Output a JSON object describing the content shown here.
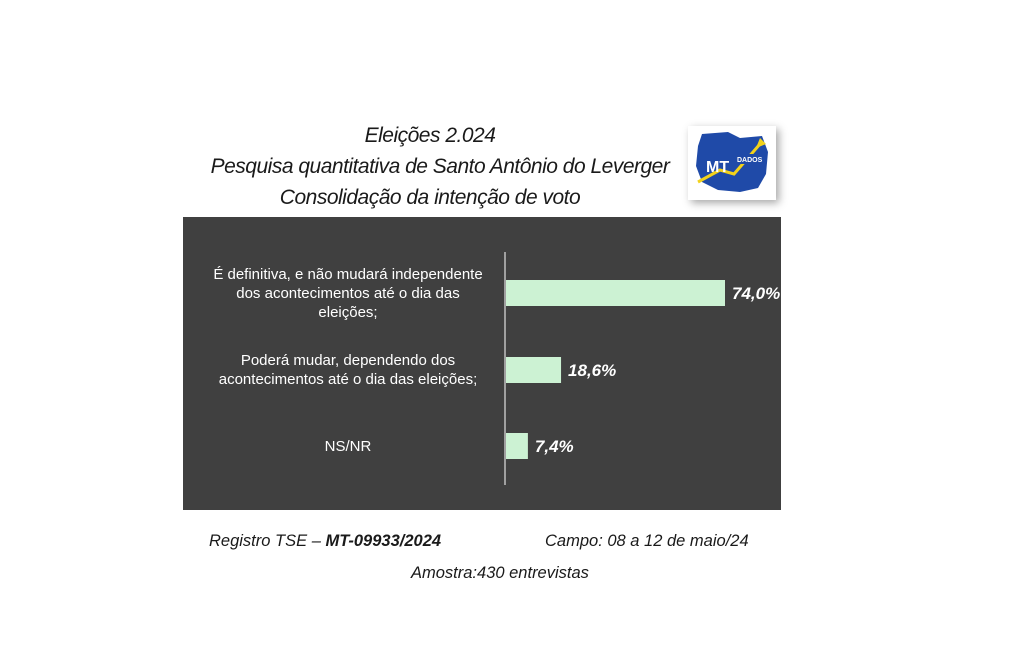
{
  "header": {
    "title_line1": "Eleições 2.024",
    "title_line2": "Pesquisa quantitativa de Santo Antônio do Leverger",
    "title_line3": "Consolidação da intenção de voto"
  },
  "logo": {
    "text_main": "MT",
    "text_sub": "DADOS",
    "icon": "mt-dados-logo"
  },
  "colors": {
    "panel_bg": "#404040",
    "bar": "#ccf2d3",
    "label": "#ffffff",
    "logo_map": "#1f4aa8",
    "logo_arrow": "#f2d21b"
  },
  "chart_data": {
    "type": "bar",
    "orientation": "horizontal",
    "categories": [
      "É definitiva, e não mudará independente dos acontecimentos até o dia das eleições;",
      "Poderá mudar, dependendo dos acontecimentos até o dia das eleições;",
      "NS/NR"
    ],
    "category_lines": [
      [
        "É definitiva, e não mudará independente",
        "dos acontecimentos até o dia das",
        "eleições;"
      ],
      [
        "Poderá mudar, dependendo dos",
        "acontecimentos até o dia das eleições;"
      ],
      [
        "NS/NR"
      ]
    ],
    "values": [
      74.0,
      18.6,
      7.4
    ],
    "value_labels": [
      "74,0%",
      "18,6%",
      "7,4%"
    ],
    "xlim": [
      0,
      100
    ],
    "grid": false,
    "legend": "none"
  },
  "footer": {
    "registro_prefix": "Registro TSE – ",
    "registro_code": "MT-09933/2024",
    "campo": "Campo: 08 a 12 de maio/24",
    "amostra": "Amostra:430 entrevistas"
  }
}
